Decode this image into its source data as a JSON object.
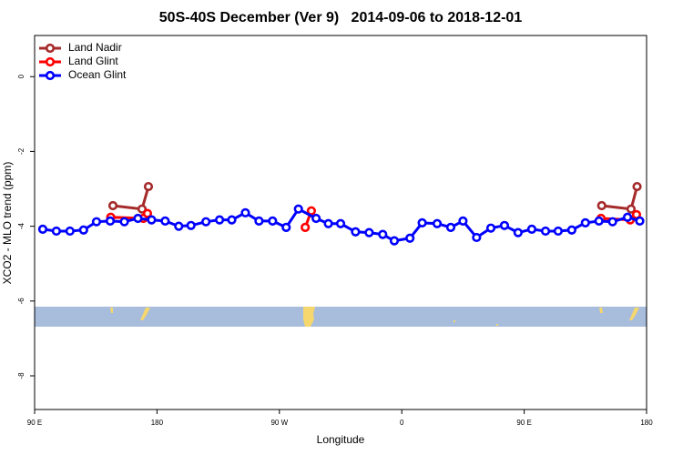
{
  "chart_data": {
    "type": "line",
    "title": "50S-40S December (Ver 9)   2014-09-06 to 2018-12-01",
    "x_label": "Longitude",
    "y_label": "XCO2 - MLO trend (ppm)",
    "xlim": [
      90,
      540
    ],
    "ylim": [
      -8.9,
      1.1
    ],
    "xticks": [
      {
        "value": 90,
        "label": "90 E"
      },
      {
        "value": 180,
        "label": "180"
      },
      {
        "value": 270,
        "label": "90 W"
      },
      {
        "value": 360,
        "label": "0"
      },
      {
        "value": 450,
        "label": "90 E"
      },
      {
        "value": 540,
        "label": "180"
      }
    ],
    "yticks": [
      0,
      -2,
      -4,
      -6,
      -8
    ],
    "legend": "top-left",
    "series": [
      {
        "name": "Land Nadir",
        "color": "#a52a2a",
        "x": [
          147.6,
          169,
          173.7,
          null,
          507,
          528.6,
          533
        ],
        "values": [
          -3.45,
          -3.54,
          -2.94,
          null,
          -3.45,
          -3.54,
          -2.94
        ]
      },
      {
        "name": "Land Glint",
        "color": "#ff0000",
        "x": [
          146,
          170,
          173,
          null,
          289,
          293.5,
          null,
          506.5,
          528,
          532.6
        ],
        "values": [
          -3.76,
          -3.79,
          -3.66,
          null,
          -4.03,
          -3.59,
          null,
          -3.79,
          -3.83,
          -3.69
        ]
      },
      {
        "name": "Ocean Glint",
        "color": "#0000ff",
        "x": [
          96,
          106,
          116,
          126,
          135.5,
          145.6,
          156,
          166,
          176,
          186,
          196,
          205,
          216,
          226,
          235,
          245,
          255,
          265,
          275,
          284,
          297,
          306,
          315,
          326,
          336,
          346,
          354.5,
          366,
          375,
          386,
          396,
          405,
          415,
          425.5,
          435.5,
          445.5,
          455.6,
          465.7,
          475,
          485,
          495,
          505,
          515,
          526,
          535
        ],
        "values": [
          -4.08,
          -4.13,
          -4.13,
          -4.1,
          -3.88,
          -3.86,
          -3.88,
          -3.79,
          -3.83,
          -3.86,
          -4.0,
          -3.98,
          -3.88,
          -3.83,
          -3.83,
          -3.64,
          -3.86,
          -3.86,
          -4.03,
          -3.54,
          -3.79,
          -3.93,
          -3.93,
          -4.15,
          -4.17,
          -4.22,
          -4.39,
          -4.32,
          -3.91,
          -3.93,
          -4.03,
          -3.86,
          -4.3,
          -4.05,
          -3.98,
          -4.17,
          -4.08,
          -4.13,
          -4.13,
          -4.1,
          -3.91,
          -3.86,
          -3.88,
          -3.76,
          -3.86
        ]
      }
    ]
  }
}
